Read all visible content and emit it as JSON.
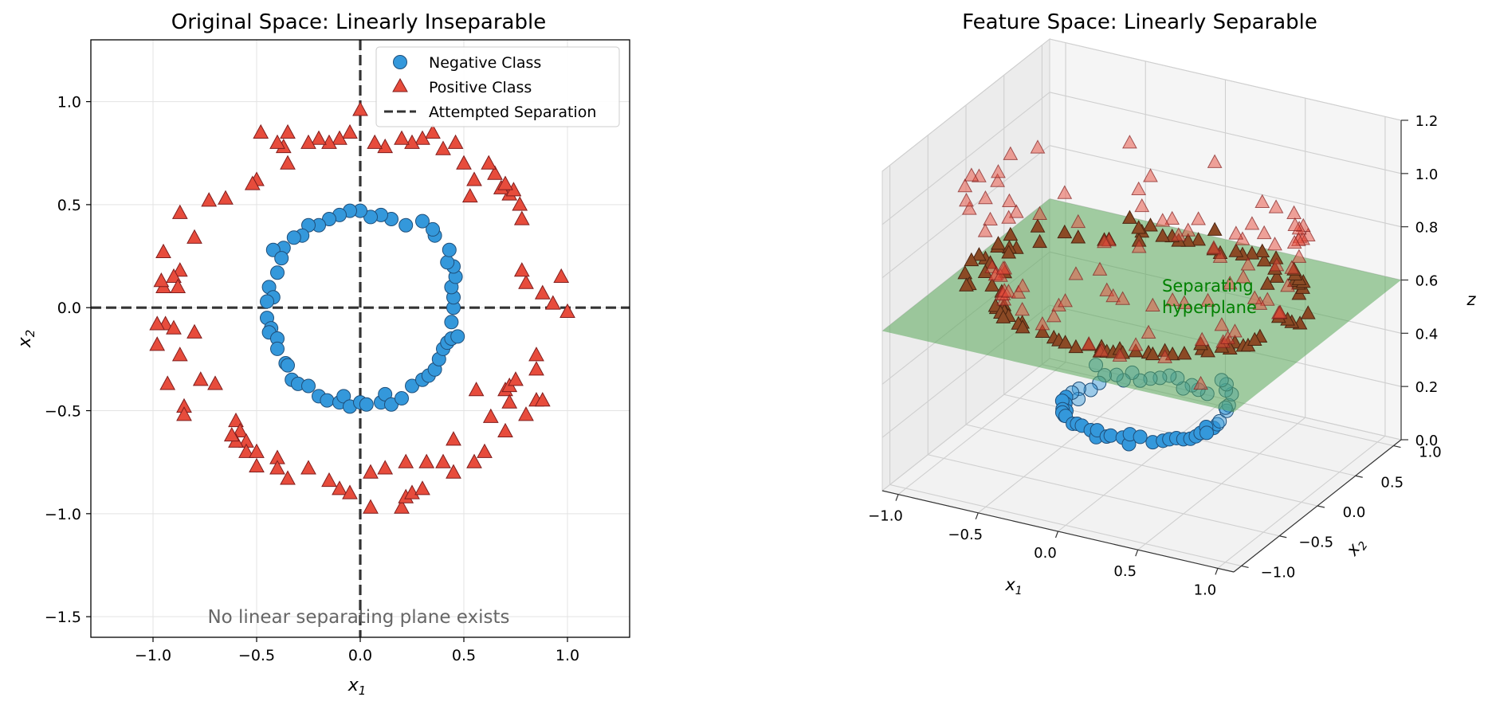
{
  "chart_data": [
    {
      "type": "scatter",
      "title": "Original Space: Linearly Inseparable",
      "xlabel": "x",
      "xlabel_sub": "1",
      "ylabel": "x",
      "ylabel_sub": "2",
      "xlim": [
        -1.3,
        1.3
      ],
      "ylim": [
        -1.6,
        1.3
      ],
      "xticks": [
        -1.0,
        -0.5,
        0.0,
        0.5,
        1.0
      ],
      "xtick_labels": [
        "−1.0",
        "−0.5",
        "0.0",
        "0.5",
        "1.0"
      ],
      "yticks": [
        -1.5,
        -1.0,
        -0.5,
        0.0,
        0.5,
        1.0
      ],
      "ytick_labels": [
        "−1.5",
        "−1.0",
        "−0.5",
        "0.0",
        "0.5",
        "1.0"
      ],
      "grid": true,
      "legend": "top-right",
      "annotation": "No linear separating plane exists",
      "separation_lines": {
        "vertical_x": 0.0,
        "horizontal_y": 0.0
      },
      "series": [
        {
          "name": "Negative Class",
          "marker": "circle",
          "color": "#3498db",
          "edge_color": "#1f4e79",
          "points": [
            [
              0.45,
              0.0
            ],
            [
              0.45,
              0.05
            ],
            [
              0.44,
              0.1
            ],
            [
              0.46,
              0.15
            ],
            [
              0.45,
              0.2
            ],
            [
              0.42,
              0.22
            ],
            [
              0.43,
              0.28
            ],
            [
              0.36,
              0.35
            ],
            [
              0.35,
              0.38
            ],
            [
              0.3,
              0.42
            ],
            [
              0.22,
              0.4
            ],
            [
              0.15,
              0.43
            ],
            [
              0.1,
              0.45
            ],
            [
              0.05,
              0.44
            ],
            [
              0.0,
              0.47
            ],
            [
              -0.05,
              0.47
            ],
            [
              -0.1,
              0.45
            ],
            [
              -0.15,
              0.43
            ],
            [
              -0.2,
              0.4
            ],
            [
              -0.25,
              0.4
            ],
            [
              -0.28,
              0.35
            ],
            [
              -0.32,
              0.34
            ],
            [
              -0.37,
              0.29
            ],
            [
              -0.42,
              0.28
            ],
            [
              -0.38,
              0.24
            ],
            [
              -0.4,
              0.17
            ],
            [
              -0.44,
              0.1
            ],
            [
              -0.42,
              0.05
            ],
            [
              -0.45,
              0.03
            ],
            [
              -0.45,
              -0.05
            ],
            [
              -0.43,
              -0.1
            ],
            [
              -0.44,
              -0.12
            ],
            [
              -0.4,
              -0.15
            ],
            [
              -0.4,
              -0.2
            ],
            [
              -0.36,
              -0.27
            ],
            [
              -0.35,
              -0.28
            ],
            [
              -0.33,
              -0.35
            ],
            [
              -0.3,
              -0.37
            ],
            [
              -0.25,
              -0.38
            ],
            [
              -0.2,
              -0.43
            ],
            [
              -0.16,
              -0.45
            ],
            [
              -0.1,
              -0.46
            ],
            [
              -0.08,
              -0.43
            ],
            [
              -0.05,
              -0.48
            ],
            [
              0.0,
              -0.46
            ],
            [
              0.03,
              -0.47
            ],
            [
              0.1,
              -0.46
            ],
            [
              0.12,
              -0.42
            ],
            [
              0.15,
              -0.47
            ],
            [
              0.2,
              -0.44
            ],
            [
              0.25,
              -0.38
            ],
            [
              0.3,
              -0.35
            ],
            [
              0.33,
              -0.33
            ],
            [
              0.36,
              -0.3
            ],
            [
              0.38,
              -0.25
            ],
            [
              0.4,
              -0.2
            ],
            [
              0.42,
              -0.17
            ],
            [
              0.44,
              -0.15
            ],
            [
              0.47,
              -0.14
            ],
            [
              0.44,
              -0.07
            ]
          ]
        },
        {
          "name": "Positive Class",
          "marker": "triangle",
          "color": "#e74c3c",
          "edge_color": "#7f1d1d",
          "points": [
            [
              1.0,
              -0.02
            ],
            [
              0.93,
              0.02
            ],
            [
              0.97,
              0.15
            ],
            [
              0.88,
              0.07
            ],
            [
              0.8,
              0.12
            ],
            [
              0.78,
              0.18
            ],
            [
              0.78,
              0.43
            ],
            [
              0.77,
              0.5
            ],
            [
              0.72,
              0.55
            ],
            [
              0.68,
              0.58
            ],
            [
              0.74,
              0.57
            ],
            [
              0.7,
              0.6
            ],
            [
              0.65,
              0.65
            ],
            [
              0.62,
              0.7
            ],
            [
              0.55,
              0.62
            ],
            [
              0.53,
              0.54
            ],
            [
              0.5,
              0.7
            ],
            [
              0.46,
              0.8
            ],
            [
              0.4,
              0.77
            ],
            [
              0.35,
              0.85
            ],
            [
              0.3,
              0.82
            ],
            [
              0.25,
              0.8
            ],
            [
              0.2,
              0.82
            ],
            [
              0.12,
              0.78
            ],
            [
              0.07,
              0.8
            ],
            [
              0.0,
              0.96
            ],
            [
              -0.05,
              0.85
            ],
            [
              -0.1,
              0.82
            ],
            [
              -0.15,
              0.8
            ],
            [
              -0.2,
              0.82
            ],
            [
              -0.25,
              0.8
            ],
            [
              -0.35,
              0.85
            ],
            [
              -0.37,
              0.78
            ],
            [
              -0.4,
              0.8
            ],
            [
              -0.48,
              0.85
            ],
            [
              -0.35,
              0.7
            ],
            [
              -0.5,
              0.62
            ],
            [
              -0.52,
              0.6
            ],
            [
              -0.65,
              0.53
            ],
            [
              -0.73,
              0.52
            ],
            [
              -0.87,
              0.46
            ],
            [
              -0.8,
              0.34
            ],
            [
              -0.95,
              0.27
            ],
            [
              -0.87,
              0.18
            ],
            [
              -0.9,
              0.15
            ],
            [
              -0.95,
              0.1
            ],
            [
              -0.96,
              0.13
            ],
            [
              -0.88,
              0.1
            ],
            [
              -0.94,
              -0.08
            ],
            [
              -0.98,
              -0.08
            ],
            [
              -0.8,
              -0.12
            ],
            [
              -0.9,
              -0.1
            ],
            [
              -0.98,
              -0.18
            ],
            [
              -0.87,
              -0.23
            ],
            [
              -0.93,
              -0.37
            ],
            [
              -0.77,
              -0.35
            ],
            [
              -0.7,
              -0.37
            ],
            [
              -0.85,
              -0.48
            ],
            [
              -0.85,
              -0.52
            ],
            [
              -0.6,
              -0.55
            ],
            [
              -0.58,
              -0.6
            ],
            [
              -0.55,
              -0.65
            ],
            [
              -0.6,
              -0.65
            ],
            [
              -0.62,
              -0.62
            ],
            [
              -0.55,
              -0.7
            ],
            [
              -0.5,
              -0.7
            ],
            [
              -0.5,
              -0.77
            ],
            [
              -0.4,
              -0.73
            ],
            [
              -0.4,
              -0.78
            ],
            [
              -0.35,
              -0.83
            ],
            [
              -0.25,
              -0.78
            ],
            [
              -0.15,
              -0.84
            ],
            [
              -0.1,
              -0.88
            ],
            [
              -0.05,
              -0.9
            ],
            [
              0.05,
              -0.97
            ],
            [
              0.05,
              -0.8
            ],
            [
              0.12,
              -0.78
            ],
            [
              0.2,
              -0.97
            ],
            [
              0.22,
              -0.92
            ],
            [
              0.25,
              -0.9
            ],
            [
              0.22,
              -0.75
            ],
            [
              0.3,
              -0.88
            ],
            [
              0.32,
              -0.75
            ],
            [
              0.4,
              -0.75
            ],
            [
              0.45,
              -0.8
            ],
            [
              0.45,
              -0.64
            ],
            [
              0.55,
              -0.75
            ],
            [
              0.6,
              -0.7
            ],
            [
              0.63,
              -0.53
            ],
            [
              0.7,
              -0.4
            ],
            [
              0.72,
              -0.38
            ],
            [
              0.7,
              -0.6
            ],
            [
              0.75,
              -0.35
            ],
            [
              0.8,
              -0.52
            ],
            [
              0.85,
              -0.45
            ],
            [
              0.88,
              -0.45
            ],
            [
              0.85,
              -0.23
            ],
            [
              0.85,
              -0.3
            ],
            [
              0.72,
              -0.46
            ],
            [
              0.56,
              -0.4
            ]
          ]
        },
        {
          "name": "Attempted Separation",
          "marker": "dashed-line",
          "color": "#333333"
        }
      ]
    },
    {
      "type": "scatter",
      "title": "Feature Space: Linearly Separable",
      "xlabel": "x",
      "xlabel_sub": "1",
      "ylabel": "x",
      "ylabel_sub": "2",
      "zlabel": "z",
      "xlim": [
        -1.1,
        1.1
      ],
      "ylim": [
        -1.1,
        1.1
      ],
      "zlim": [
        0.0,
        1.2
      ],
      "xticks": [
        -1.0,
        -0.5,
        0.0,
        0.5,
        1.0
      ],
      "xtick_labels": [
        "−1.0",
        "−0.5",
        "0.0",
        "0.5",
        "1.0"
      ],
      "yticks": [
        -1.0,
        -0.5,
        0.0,
        0.5,
        1.0
      ],
      "ytick_labels": [
        "−1.0",
        "−0.5",
        "0.0",
        "0.5",
        "1.0"
      ],
      "zticks": [
        0.0,
        0.2,
        0.4,
        0.6,
        0.8,
        1.0,
        1.2
      ],
      "ztick_labels": [
        "0.0",
        "0.2",
        "0.4",
        "0.6",
        "0.8",
        "1.0",
        "1.2"
      ],
      "grid": true,
      "hyperplane": {
        "z": 0.6,
        "color": "#5aa85a",
        "label": "Separating hyperplane"
      },
      "negative_color": "#3498db",
      "positive_color": "#e74c3c"
    }
  ]
}
